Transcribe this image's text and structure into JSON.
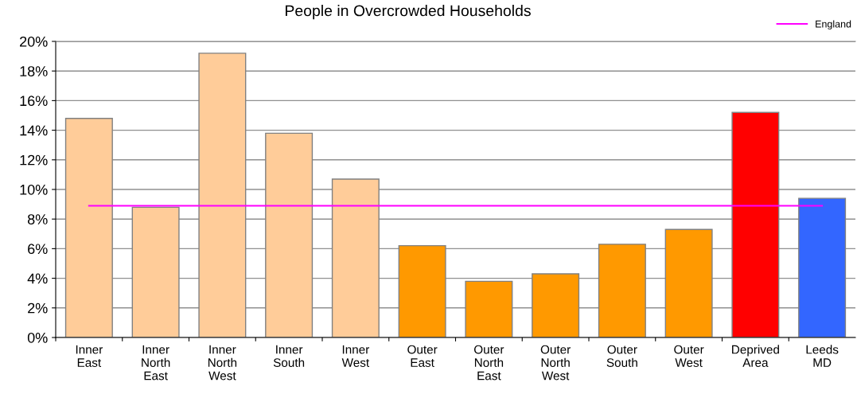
{
  "chart_data": {
    "type": "bar",
    "title": "People in Overcrowded Households",
    "categories": [
      "Inner\nEast",
      "Inner\nNorth\nEast",
      "Inner\nNorth\nWest",
      "Inner\nSouth",
      "Inner\nWest",
      "Outer\nEast",
      "Outer\nNorth\nEast",
      "Outer\nNorth\nWest",
      "Outer\nSouth",
      "Outer\nWest",
      "Deprived\nArea",
      "Leeds\nMD"
    ],
    "series": [
      {
        "colors": [
          "#ffcc99",
          "#ffcc99",
          "#ffcc99",
          "#ffcc99",
          "#ffcc99",
          "#ff9900",
          "#ff9900",
          "#ff9900",
          "#ff9900",
          "#ff9900",
          "#ff0000",
          "#3366ff"
        ],
        "values": [
          14.8,
          8.8,
          19.2,
          13.8,
          10.7,
          6.2,
          3.8,
          4.3,
          6.3,
          7.3,
          15.2,
          9.4
        ]
      },
      {
        "type": "line",
        "name": "England",
        "color": "#ff00ff",
        "values": [
          8.9,
          8.9,
          8.9,
          8.9,
          8.9,
          8.9,
          8.9,
          8.9,
          8.9,
          8.9,
          8.9,
          8.9
        ]
      }
    ],
    "ylim": [
      0,
      20
    ],
    "yticks": [
      {
        "value": 0,
        "label": "0%"
      },
      {
        "value": 2,
        "label": "2%"
      },
      {
        "value": 4,
        "label": "4%"
      },
      {
        "value": 6,
        "label": "6%"
      },
      {
        "value": 8,
        "label": "8%"
      },
      {
        "value": 10,
        "label": "10%"
      },
      {
        "value": 12,
        "label": "12%"
      },
      {
        "value": 14,
        "label": "14%"
      },
      {
        "value": 16,
        "label": "16%"
      },
      {
        "value": 18,
        "label": "18%"
      },
      {
        "value": 20,
        "label": "20%"
      }
    ],
    "grid": "y",
    "legend": "top right"
  }
}
